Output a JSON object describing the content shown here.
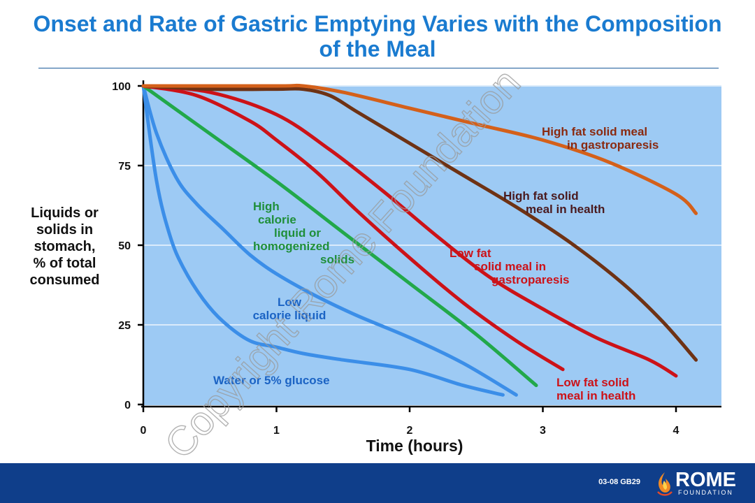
{
  "title": "Onset and Rate of Gastric Emptying Varies with the Composition of the Meal",
  "y_axis_label": [
    "Liquids or",
    "solids in",
    "stomach,",
    "% of total",
    "consumed"
  ],
  "watermark": "Copyright Rome Foundation",
  "footer": {
    "slide_code": "03-08  GB29",
    "logo_name": "ROME",
    "logo_sub": "FOUNDATION"
  },
  "colors": {
    "plot_bg": "#9dcaf4",
    "grid": "#ffffff",
    "water": "#3b8ee8",
    "low_calorie": "#3b8ee8",
    "high_calorie": "#22a84a",
    "low_fat": "#cc1218",
    "high_fat": "#6e3214",
    "high_fat_gp": "#d4601a"
  },
  "chart_data": {
    "type": "line",
    "title": "Onset and Rate of Gastric Emptying Varies with the Composition of the Meal",
    "xlabel": "Time (hours)",
    "ylabel": "Liquids or solids in stomach, % of total consumed",
    "xlim": [
      0,
      4.3
    ],
    "ylim": [
      0,
      100
    ],
    "xticks": [
      0,
      1,
      2,
      3,
      4
    ],
    "yticks": [
      0,
      25,
      50,
      75,
      100
    ],
    "grid": true,
    "series": [
      {
        "name": "Water or 5% glucose",
        "label_lines": [
          "Water or 5% glucose"
        ],
        "color_key": "water",
        "points": [
          [
            0,
            100
          ],
          [
            0.1,
            70
          ],
          [
            0.2,
            53
          ],
          [
            0.3,
            43
          ],
          [
            0.45,
            33
          ],
          [
            0.6,
            26
          ],
          [
            0.8,
            20
          ],
          [
            1.0,
            18
          ],
          [
            1.2,
            16
          ],
          [
            1.5,
            14
          ],
          [
            2.0,
            11
          ],
          [
            2.4,
            6
          ],
          [
            2.7,
            3
          ]
        ]
      },
      {
        "name": "Low calorie liquid",
        "label_lines": [
          "Low",
          "calorie liquid"
        ],
        "color_key": "low_calorie",
        "points": [
          [
            0,
            100
          ],
          [
            0.1,
            85
          ],
          [
            0.25,
            71
          ],
          [
            0.4,
            63
          ],
          [
            0.6,
            55
          ],
          [
            0.8,
            47
          ],
          [
            1.0,
            41
          ],
          [
            1.3,
            34
          ],
          [
            1.6,
            28
          ],
          [
            2.0,
            21
          ],
          [
            2.4,
            13
          ],
          [
            2.8,
            3
          ]
        ]
      },
      {
        "name": "High calorie liquid or homogenized solids",
        "label_lines": [
          "High",
          "calorie",
          "liquid or",
          "homogenized",
          "solids"
        ],
        "color_key": "high_calorie",
        "points": [
          [
            0,
            100
          ],
          [
            0.5,
            85
          ],
          [
            1.0,
            70
          ],
          [
            1.5,
            54
          ],
          [
            2.0,
            38
          ],
          [
            2.5,
            22
          ],
          [
            2.95,
            6
          ]
        ]
      },
      {
        "name": "Low fat solid meal in health",
        "label_lines": [
          "Low fat solid",
          "meal in health"
        ],
        "color_key": "low_fat",
        "points": [
          [
            0,
            100
          ],
          [
            0.4,
            97
          ],
          [
            0.8,
            89
          ],
          [
            1.0,
            83
          ],
          [
            1.3,
            73
          ],
          [
            1.6,
            61
          ],
          [
            2.0,
            46
          ],
          [
            2.4,
            32
          ],
          [
            2.8,
            20
          ],
          [
            3.15,
            11
          ]
        ]
      },
      {
        "name": "Low fat solid meal in gastroparesis",
        "label_lines": [
          "Low fat",
          "solid meal in",
          "gastroparesis"
        ],
        "color_key": "low_fat",
        "points": [
          [
            0,
            100
          ],
          [
            0.5,
            98
          ],
          [
            1.0,
            91
          ],
          [
            1.4,
            80
          ],
          [
            1.8,
            67
          ],
          [
            2.2,
            53
          ],
          [
            2.6,
            40
          ],
          [
            3.0,
            30
          ],
          [
            3.4,
            21
          ],
          [
            3.8,
            14
          ],
          [
            4.0,
            9
          ]
        ]
      },
      {
        "name": "High fat solid meal in health",
        "label_lines": [
          "High fat solid",
          "meal in health"
        ],
        "color_key": "high_fat",
        "points": [
          [
            0,
            100
          ],
          [
            0.5,
            99
          ],
          [
            1.0,
            99
          ],
          [
            1.2,
            99
          ],
          [
            1.4,
            97
          ],
          [
            1.6,
            92
          ],
          [
            2.0,
            82
          ],
          [
            2.4,
            72
          ],
          [
            2.8,
            62
          ],
          [
            3.2,
            51
          ],
          [
            3.6,
            38
          ],
          [
            3.9,
            26
          ],
          [
            4.15,
            14
          ]
        ]
      },
      {
        "name": "High fat solid meal in gastroparesis",
        "label_lines": [
          "High fat solid meal",
          "in gastroparesis"
        ],
        "color_key": "high_fat_gp",
        "points": [
          [
            0,
            100
          ],
          [
            1.0,
            100
          ],
          [
            1.2,
            100
          ],
          [
            1.5,
            98
          ],
          [
            2.0,
            93
          ],
          [
            2.5,
            88
          ],
          [
            3.0,
            83
          ],
          [
            3.5,
            76
          ],
          [
            4.0,
            66
          ],
          [
            4.15,
            60
          ]
        ]
      }
    ]
  }
}
